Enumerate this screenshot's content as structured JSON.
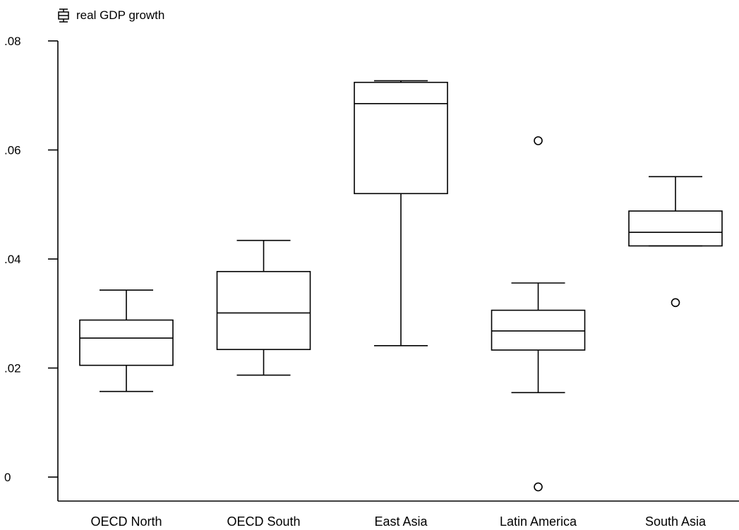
{
  "legend": {
    "label": "real GDP growth",
    "icon": "box-plot-icon"
  },
  "chart_data": {
    "type": "box",
    "title": "",
    "xlabel": "",
    "ylabel": "",
    "ylim": [
      -0.004,
      0.08
    ],
    "yticks": [
      0,
      0.02,
      0.04,
      0.06,
      0.08
    ],
    "ytick_labels": [
      "0",
      ".02",
      ".04",
      ".06",
      ".08"
    ],
    "grid": false,
    "legend_position": "top-left",
    "series_name": "real GDP growth",
    "categories": [
      "OECD North",
      "OECD South",
      "East Asia",
      "Latin America",
      "South Asia"
    ],
    "boxes": [
      {
        "category": "OECD North",
        "whisker_low": 0.0157,
        "q1": 0.0205,
        "median": 0.0255,
        "q3": 0.0288,
        "whisker_high": 0.0343,
        "outliers": []
      },
      {
        "category": "OECD South",
        "whisker_low": 0.0187,
        "q1": 0.0234,
        "median": 0.0301,
        "q3": 0.0377,
        "whisker_high": 0.0434,
        "outliers": []
      },
      {
        "category": "East Asia",
        "whisker_low": 0.0241,
        "q1": 0.052,
        "median": 0.0685,
        "q3": 0.0724,
        "whisker_high": 0.0727,
        "outliers": []
      },
      {
        "category": "Latin America",
        "whisker_low": 0.0155,
        "q1": 0.0233,
        "median": 0.0268,
        "q3": 0.0306,
        "whisker_high": 0.0356,
        "outliers": [
          0.0617,
          -0.0018
        ]
      },
      {
        "category": "South Asia",
        "whisker_low": 0.0424,
        "q1": 0.0424,
        "median": 0.0449,
        "q3": 0.0488,
        "whisker_high": 0.0551,
        "outliers": [
          0.032
        ]
      }
    ]
  }
}
